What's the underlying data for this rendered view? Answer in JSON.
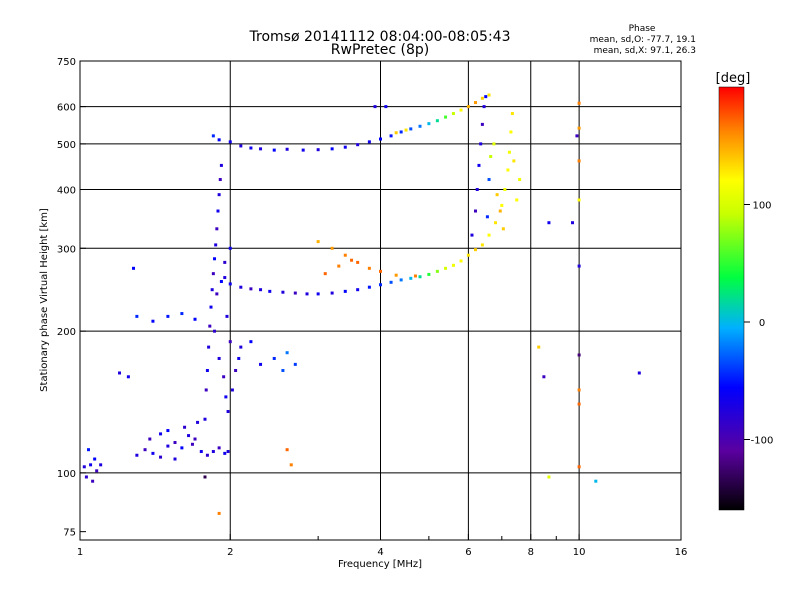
{
  "title": "Tromsø 20141112 08:04:00-08:05:43",
  "subtitle": "RwPretec (8p)",
  "stats": {
    "heading": "Phase",
    "o_line": "mean, sd,O: -77.7, 19.1",
    "x_line": "mean, sd,X:  97.1, 26.3"
  },
  "colorbar": {
    "unit_label": "[deg]",
    "ticks": [
      {
        "label": "100",
        "value": 100
      },
      {
        "label": "0",
        "value": 0
      },
      {
        "label": "-100",
        "value": -100
      }
    ],
    "range": [
      -160,
      200
    ]
  },
  "chart_data": {
    "type": "scatter",
    "xlabel": "Frequency [MHz]",
    "ylabel": "Stationary phase Virtual Height [km]",
    "xscale": "log",
    "yscale": "log",
    "xlim": [
      1,
      16
    ],
    "ylim": [
      72,
      750
    ],
    "xticks": [
      {
        "label": "1",
        "value": 1
      },
      {
        "label": "2",
        "value": 2
      },
      {
        "label": "4",
        "value": 4
      },
      {
        "label": "6",
        "value": 6
      },
      {
        "label": "8",
        "value": 8
      },
      {
        "label": "10",
        "value": 10
      },
      {
        "label": "16",
        "value": 16
      }
    ],
    "yticks": [
      {
        "label": "75",
        "value": 75
      },
      {
        "label": "100",
        "value": 100
      },
      {
        "label": "200",
        "value": 200
      },
      {
        "label": "300",
        "value": 300
      },
      {
        "label": "400",
        "value": 400
      },
      {
        "label": "500",
        "value": 500
      },
      {
        "label": "600",
        "value": 600
      },
      {
        "label": "750",
        "value": 750
      }
    ],
    "minor_xticks": [
      3,
      5,
      7,
      9
    ],
    "grid_x": [
      2,
      4,
      6,
      8,
      10
    ],
    "grid_y": [
      100,
      200,
      300,
      400,
      500,
      600
    ],
    "series": [
      {
        "points": [
          [
            1.02,
            103,
            -100
          ],
          [
            1.05,
            104,
            -95
          ],
          [
            1.08,
            101,
            -110
          ],
          [
            1.03,
            98,
            -105
          ],
          [
            1.07,
            107,
            -90
          ],
          [
            1.1,
            104,
            -100
          ],
          [
            1.04,
            112,
            -85
          ],
          [
            1.06,
            96,
            -110
          ],
          [
            1.3,
            109,
            -100
          ],
          [
            1.35,
            112,
            -110
          ],
          [
            1.4,
            110,
            -95
          ],
          [
            1.45,
            108,
            -105
          ],
          [
            1.5,
            114,
            -100
          ],
          [
            1.55,
            116,
            -110
          ],
          [
            1.6,
            113,
            -90
          ],
          [
            1.65,
            120,
            -100
          ],
          [
            1.7,
            118,
            -110
          ],
          [
            1.75,
            111,
            -95
          ],
          [
            1.8,
            109,
            -105
          ],
          [
            1.85,
            111,
            -100
          ],
          [
            1.9,
            113,
            -110
          ],
          [
            1.95,
            110,
            -95
          ],
          [
            1.98,
            111,
            -100
          ],
          [
            1.55,
            107,
            -100
          ],
          [
            1.45,
            121,
            -95
          ],
          [
            1.62,
            125,
            -105
          ],
          [
            1.72,
            128,
            -100
          ],
          [
            1.38,
            118,
            -110
          ],
          [
            1.5,
            123,
            -90
          ],
          [
            1.68,
            115,
            -110
          ]
        ]
      },
      {
        "points": [
          [
            1.78,
            130,
            -100
          ],
          [
            1.79,
            150,
            -110
          ],
          [
            1.8,
            165,
            -95
          ],
          [
            1.81,
            185,
            -100
          ],
          [
            1.82,
            205,
            -110
          ],
          [
            1.83,
            225,
            -95
          ],
          [
            1.84,
            245,
            -100
          ],
          [
            1.85,
            265,
            -110
          ],
          [
            1.86,
            285,
            -90
          ],
          [
            1.87,
            305,
            -100
          ],
          [
            1.88,
            330,
            -110
          ],
          [
            1.89,
            360,
            -95
          ],
          [
            1.9,
            390,
            -100
          ],
          [
            1.91,
            420,
            -110
          ],
          [
            1.92,
            450,
            -100
          ],
          [
            1.86,
            200,
            -105
          ],
          [
            1.9,
            175,
            -100
          ],
          [
            1.94,
            160,
            -110
          ],
          [
            1.96,
            145,
            -95
          ],
          [
            1.98,
            135,
            -100
          ],
          [
            1.92,
            255,
            -90
          ],
          [
            1.95,
            280,
            -105
          ],
          [
            2.0,
            300,
            -95
          ],
          [
            1.88,
            240,
            -110
          ],
          [
            2.02,
            150,
            -100
          ],
          [
            2.05,
            165,
            -110
          ],
          [
            2.08,
            175,
            -95
          ],
          [
            2.1,
            185,
            -100
          ],
          [
            2.0,
            190,
            -110
          ],
          [
            1.97,
            215,
            -100
          ],
          [
            2.2,
            190,
            -90
          ],
          [
            2.3,
            170,
            -95
          ],
          [
            2.45,
            175,
            -80
          ],
          [
            2.55,
            165,
            -70
          ],
          [
            2.7,
            170,
            -75
          ],
          [
            1.3,
            215,
            -80
          ],
          [
            1.4,
            210,
            -90
          ],
          [
            1.5,
            215,
            -85
          ],
          [
            1.6,
            218,
            -80
          ],
          [
            1.7,
            212,
            -90
          ],
          [
            1.2,
            163,
            -100
          ],
          [
            1.25,
            160,
            -95
          ],
          [
            1.28,
            272,
            -90
          ],
          [
            2.6,
            180,
            -60
          ]
        ]
      },
      {
        "points": [
          [
            1.85,
            520,
            -80
          ],
          [
            1.9,
            510,
            -90
          ],
          [
            2.0,
            505,
            -95
          ],
          [
            2.1,
            495,
            -100
          ],
          [
            2.2,
            490,
            -95
          ],
          [
            2.3,
            488,
            -100
          ],
          [
            2.45,
            485,
            -90
          ],
          [
            2.6,
            487,
            -100
          ],
          [
            2.8,
            485,
            -95
          ],
          [
            3.0,
            486,
            -100
          ],
          [
            3.2,
            488,
            -90
          ],
          [
            3.4,
            492,
            -95
          ],
          [
            3.6,
            498,
            -100
          ],
          [
            3.8,
            505,
            -95
          ],
          [
            4.0,
            512,
            -90
          ],
          [
            4.2,
            520,
            -85
          ],
          [
            4.4,
            530,
            -80
          ],
          [
            4.6,
            538,
            -70
          ],
          [
            4.8,
            545,
            -60
          ],
          [
            5.0,
            552,
            -40
          ],
          [
            5.2,
            560,
            -20
          ],
          [
            5.4,
            570,
            20
          ],
          [
            5.6,
            580,
            60
          ],
          [
            5.8,
            590,
            100
          ],
          [
            6.0,
            600,
            130
          ],
          [
            6.2,
            612,
            140
          ],
          [
            6.4,
            625,
            120
          ],
          [
            6.6,
            635,
            110
          ],
          [
            4.3,
            528,
            120
          ],
          [
            4.5,
            535,
            110
          ],
          [
            3.9,
            600,
            -100
          ],
          [
            4.1,
            600,
            -95
          ]
        ]
      },
      {
        "points": [
          [
            1.95,
            260,
            -100
          ],
          [
            2.0,
            252,
            -95
          ],
          [
            2.1,
            248,
            -100
          ],
          [
            2.2,
            246,
            -110
          ],
          [
            2.3,
            245,
            -100
          ],
          [
            2.4,
            243,
            -95
          ],
          [
            2.55,
            242,
            -100
          ],
          [
            2.7,
            241,
            -110
          ],
          [
            2.85,
            240,
            -100
          ],
          [
            3.0,
            240,
            -95
          ],
          [
            3.2,
            241,
            -100
          ],
          [
            3.4,
            243,
            -90
          ],
          [
            3.6,
            245,
            -95
          ],
          [
            3.8,
            248,
            -85
          ],
          [
            4.0,
            251,
            -80
          ],
          [
            4.2,
            254,
            -70
          ],
          [
            4.4,
            257,
            -60
          ],
          [
            4.6,
            259,
            -40
          ],
          [
            4.8,
            261,
            -20
          ],
          [
            5.0,
            264,
            10
          ],
          [
            5.2,
            268,
            40
          ],
          [
            5.4,
            272,
            70
          ],
          [
            5.6,
            276,
            90
          ],
          [
            5.8,
            282,
            100
          ],
          [
            6.0,
            290,
            110
          ],
          [
            6.2,
            298,
            120
          ],
          [
            6.4,
            305,
            110
          ],
          [
            6.6,
            320,
            100
          ],
          [
            6.8,
            340,
            110
          ],
          [
            7.0,
            370,
            100
          ],
          [
            7.1,
            400,
            90
          ],
          [
            7.2,
            440,
            100
          ],
          [
            7.25,
            480,
            90
          ],
          [
            7.3,
            530,
            100
          ],
          [
            7.35,
            580,
            110
          ],
          [
            3.0,
            310,
            130
          ],
          [
            3.2,
            300,
            140
          ],
          [
            3.4,
            290,
            150
          ],
          [
            3.6,
            280,
            160
          ],
          [
            3.8,
            272,
            150
          ],
          [
            4.0,
            268,
            160
          ],
          [
            4.3,
            263,
            140
          ],
          [
            4.7,
            262,
            150
          ],
          [
            3.1,
            265,
            160
          ],
          [
            3.3,
            275,
            150
          ],
          [
            3.5,
            283,
            160
          ],
          [
            6.1,
            320,
            -100
          ],
          [
            6.2,
            360,
            -110
          ],
          [
            6.25,
            400,
            -100
          ],
          [
            6.3,
            450,
            -95
          ],
          [
            6.35,
            500,
            -100
          ],
          [
            6.4,
            550,
            -110
          ],
          [
            6.45,
            600,
            -100
          ],
          [
            6.5,
            630,
            -90
          ],
          [
            6.55,
            350,
            -80
          ],
          [
            6.6,
            420,
            -70
          ],
          [
            6.65,
            470,
            60
          ],
          [
            6.75,
            500,
            80
          ],
          [
            6.85,
            390,
            120
          ],
          [
            6.95,
            360,
            130
          ],
          [
            7.05,
            330,
            120
          ],
          [
            7.4,
            460,
            110
          ],
          [
            7.5,
            380,
            100
          ],
          [
            7.6,
            420,
            90
          ]
        ]
      },
      {
        "points": [
          [
            10,
            610,
            150
          ],
          [
            10,
            540,
            140
          ],
          [
            10,
            460,
            150
          ],
          [
            10,
            380,
            100
          ],
          [
            10,
            275,
            -100
          ],
          [
            10,
            178,
            -130
          ],
          [
            10,
            150,
            150
          ],
          [
            10,
            140,
            160
          ],
          [
            10,
            103,
            160
          ],
          [
            9.9,
            520,
            -110
          ],
          [
            9.7,
            340,
            -100
          ],
          [
            8.7,
            340,
            -95
          ],
          [
            8.5,
            160,
            -110
          ],
          [
            8.3,
            185,
            120
          ],
          [
            8.7,
            98,
            80
          ],
          [
            10.8,
            96,
            -40
          ],
          [
            13.2,
            163,
            -100
          ],
          [
            1.78,
            98,
            -140
          ],
          [
            1.9,
            82,
            150
          ],
          [
            2.6,
            112,
            160
          ],
          [
            2.65,
            104,
            150
          ]
        ]
      }
    ]
  }
}
